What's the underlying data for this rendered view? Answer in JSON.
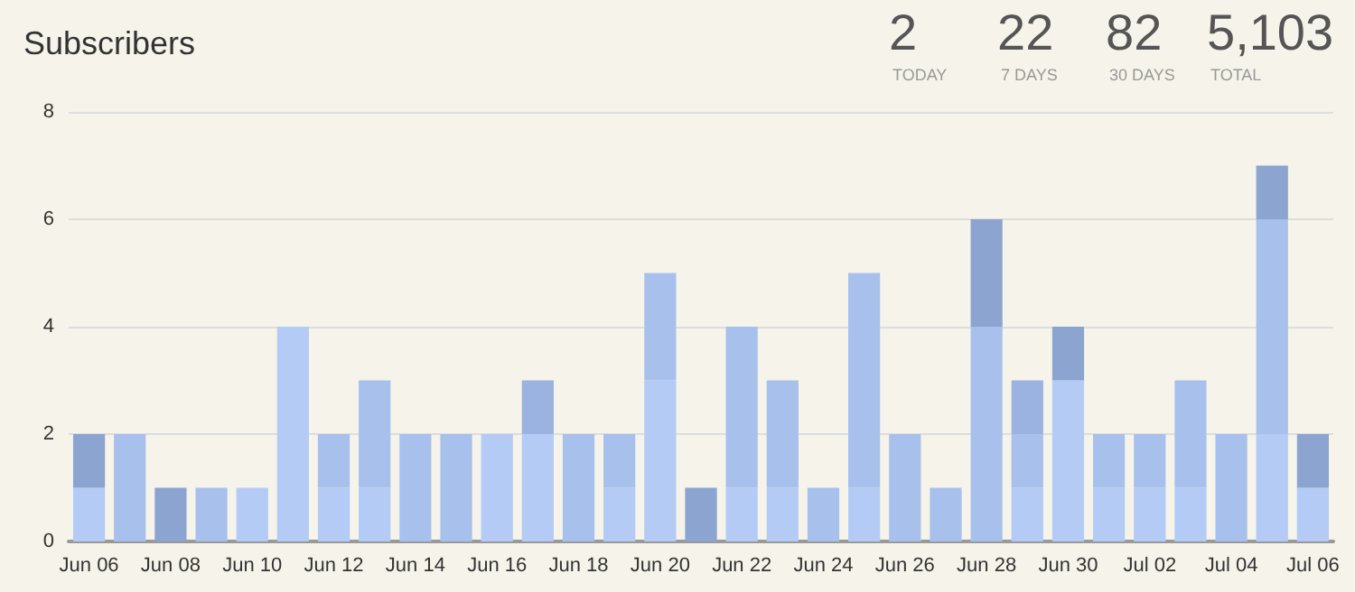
{
  "chart_data": {
    "type": "bar",
    "title": "Subscribers",
    "stacked": true,
    "categories": [
      "Jun 06",
      null,
      "Jun 08",
      null,
      "Jun 10",
      null,
      "Jun 12",
      null,
      "Jun 14",
      null,
      "Jun 16",
      null,
      "Jun 18",
      null,
      "Jun 20",
      null,
      "Jun 22",
      null,
      "Jun 24",
      null,
      "Jun 26",
      null,
      "Jun 28",
      null,
      "Jun 30",
      null,
      "Jul 02",
      null,
      "Jul 04",
      null,
      "Jul 06"
    ],
    "series": [
      {
        "color": "#b3cbf5",
        "values": [
          1,
          null,
          null,
          null,
          1,
          4,
          1,
          1,
          null,
          null,
          2,
          2,
          null,
          1,
          3,
          null,
          1,
          1,
          null,
          1,
          null,
          null,
          null,
          1,
          3,
          1,
          1,
          1,
          null,
          2,
          1
        ]
      },
      {
        "color": "#a8c1ec",
        "values": [
          null,
          2,
          null,
          1,
          null,
          null,
          1,
          2,
          2,
          2,
          null,
          null,
          2,
          1,
          2,
          null,
          3,
          2,
          1,
          4,
          2,
          1,
          4,
          1,
          null,
          1,
          1,
          2,
          2,
          4,
          null
        ]
      },
      {
        "color": "#9bb3e0",
        "values": [
          null,
          null,
          null,
          null,
          null,
          null,
          null,
          null,
          null,
          null,
          null,
          1,
          null,
          null,
          null,
          null,
          null,
          null,
          null,
          null,
          null,
          null,
          null,
          1,
          null,
          null,
          null,
          null,
          null,
          null,
          null
        ]
      },
      {
        "color": "#8ca4d0",
        "values": [
          1,
          null,
          1,
          null,
          null,
          null,
          null,
          null,
          null,
          null,
          null,
          null,
          null,
          null,
          null,
          1,
          null,
          null,
          null,
          null,
          null,
          null,
          2,
          null,
          1,
          null,
          null,
          null,
          null,
          1,
          1
        ]
      }
    ],
    "ylim": [
      0,
      8
    ],
    "yticks": [
      0,
      2,
      4,
      6,
      8
    ],
    "grid": "y",
    "annotations": [
      "2",
      "TODAY",
      "22",
      "7 DAYS",
      "82",
      "30 DAYS",
      "5,103",
      "TOTAL"
    ]
  }
}
